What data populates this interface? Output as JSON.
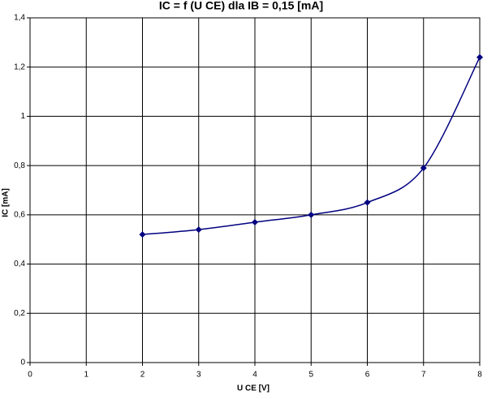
{
  "chart_data": {
    "type": "line",
    "title": "IC = f (U CE)  dla IB = 0,15 [mA]",
    "x_label": "U CE [V]",
    "y_label": "IC  [mA]",
    "x": [
      2,
      3,
      4,
      5,
      6,
      7,
      8
    ],
    "series": [
      {
        "name": "IC",
        "color": "#000080",
        "values": [
          0.52,
          0.54,
          0.57,
          0.6,
          0.65,
          0.79,
          1.24
        ]
      }
    ],
    "xlim": [
      0,
      8
    ],
    "xticks": [
      0,
      1,
      2,
      3,
      4,
      5,
      6,
      7,
      8
    ],
    "ylim": [
      0,
      1.4
    ],
    "yticks": [
      0,
      {
        "value": 0.2,
        "label": "0,2"
      },
      {
        "value": 0.4,
        "label": "0,4"
      },
      {
        "value": 0.6,
        "label": "0,6"
      },
      {
        "value": 0.8,
        "label": "0,8"
      },
      1,
      {
        "value": 1.2,
        "label": "1,2"
      },
      {
        "value": 1.4,
        "label": "1,4"
      }
    ],
    "grid": true
  }
}
